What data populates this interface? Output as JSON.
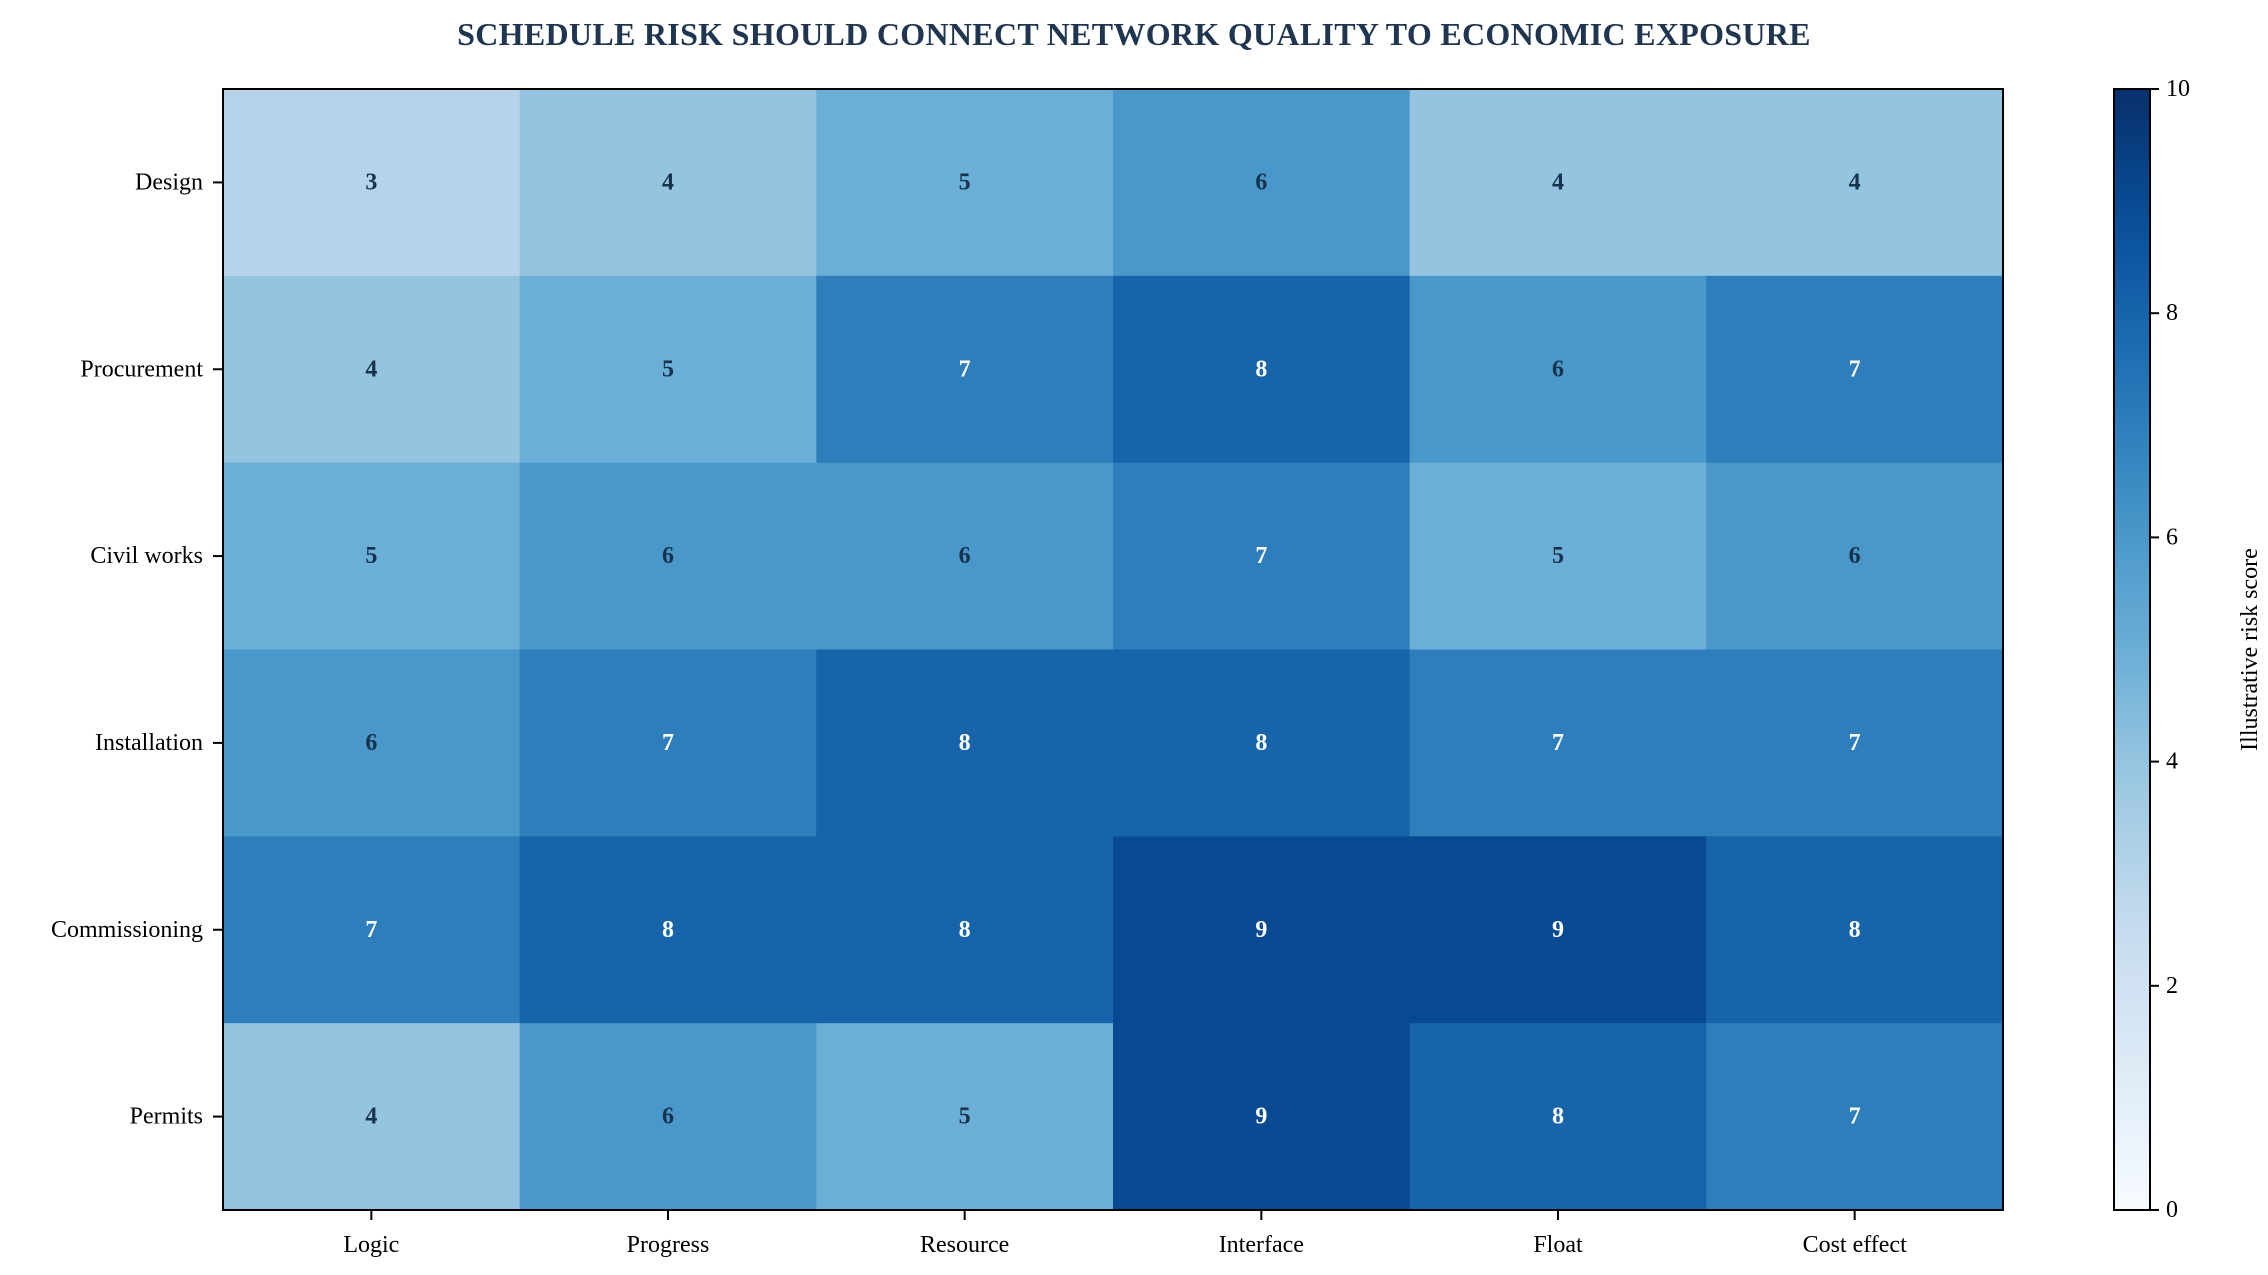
{
  "chart_data": {
    "type": "heatmap",
    "title": "SCHEDULE RISK SHOULD CONNECT NETWORK QUALITY TO ECONOMIC EXPOSURE",
    "rows": [
      "Design",
      "Procurement",
      "Civil works",
      "Installation",
      "Commissioning",
      "Permits"
    ],
    "columns": [
      "Logic",
      "Progress",
      "Resource",
      "Interface",
      "Float",
      "Cost effect"
    ],
    "values": [
      [
        3,
        4,
        5,
        6,
        4,
        4
      ],
      [
        4,
        5,
        7,
        8,
        6,
        7
      ],
      [
        5,
        6,
        6,
        7,
        5,
        6
      ],
      [
        6,
        7,
        8,
        8,
        7,
        7
      ],
      [
        7,
        8,
        8,
        9,
        9,
        8
      ],
      [
        4,
        6,
        5,
        9,
        8,
        7
      ]
    ],
    "colormap": "Blues",
    "vmin": 0,
    "vmax": 10,
    "colorbar": {
      "label": "Illustrative risk score",
      "ticks": [
        0,
        2,
        4,
        6,
        8,
        10
      ]
    },
    "colors": {
      "title": "#1f3550",
      "dark_label": "#17324d",
      "light_label": "#ffffff"
    },
    "grid": false
  }
}
